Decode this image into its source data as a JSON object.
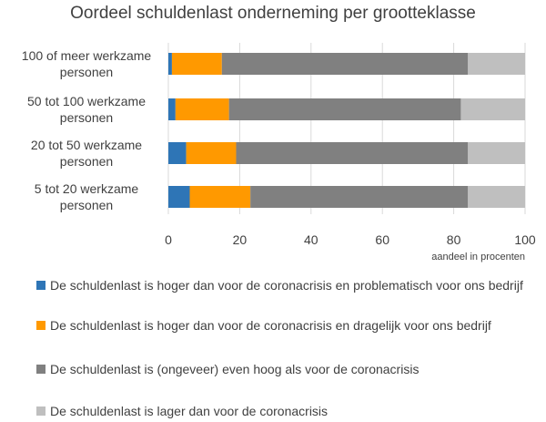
{
  "chart_data": {
    "type": "bar",
    "orientation": "horizontal",
    "stacked": true,
    "title": "Oordeel schuldenlast onderneming per grootteklasse",
    "xlabel": "aandeel in procenten",
    "xlim": [
      0,
      100
    ],
    "xticks": [
      "0",
      "20",
      "40",
      "60",
      "80",
      "100"
    ],
    "categories": [
      "100 of meer werkzame personen",
      "50 tot 100 werkzame personen",
      "20 tot 50 werkzame personen",
      "5 tot 20 werkzame personen"
    ],
    "category_lines": [
      [
        "100 of meer werkzame",
        "personen"
      ],
      [
        "50 tot 100 werkzame",
        "personen"
      ],
      [
        "20 tot 50 werkzame",
        "personen"
      ],
      [
        "5 tot 20 werkzame",
        "personen"
      ]
    ],
    "series": [
      {
        "name": "De schuldenlast is hoger dan voor de coronacrisis en problematisch voor ons bedrijf",
        "color": "#2e75b6",
        "values": [
          1,
          2,
          5,
          6
        ]
      },
      {
        "name": "De schuldenlast is hoger dan voor de coronacrisis en dragelijk voor ons bedrijf",
        "color": "#ff9900",
        "values": [
          14,
          15,
          14,
          17
        ]
      },
      {
        "name": "De schuldenlast is (ongeveer) even hoog als voor de coronacrisis",
        "color": "#808080",
        "values": [
          69,
          65,
          65,
          61
        ]
      },
      {
        "name": "De schuldenlast is lager dan voor de coronacrisis",
        "color": "#bfbfbf",
        "values": [
          16,
          18,
          16,
          16
        ]
      }
    ],
    "legend_position": "bottom"
  }
}
